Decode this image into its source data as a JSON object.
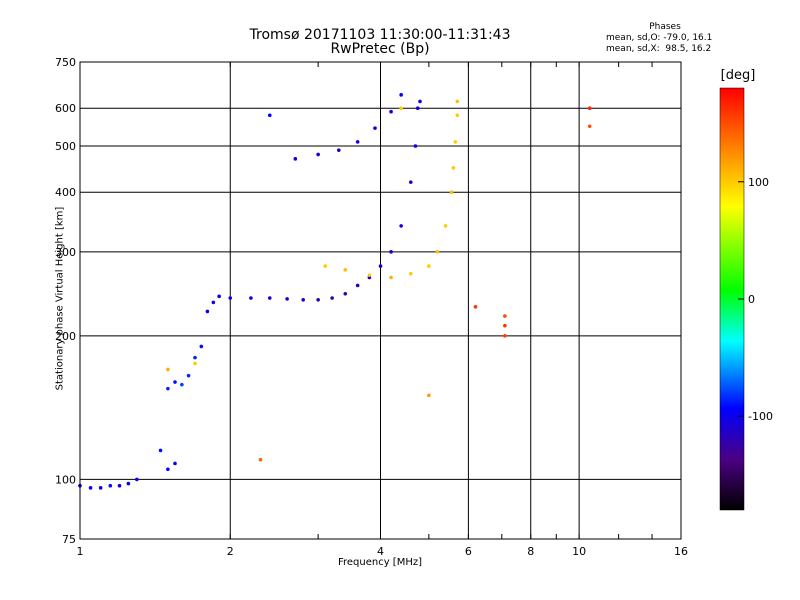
{
  "chart_data": {
    "type": "scatter",
    "title": "Tromsø 20171103 11:30:00-11:31:43",
    "subtitle": "RwPretec (Bp)",
    "xlabel": "Frequency [MHz]",
    "ylabel": "Stationary phase Virtual Height [km]",
    "x_scale": "log",
    "y_scale": "log",
    "xlim": [
      1,
      16
    ],
    "ylim": [
      75,
      750
    ],
    "x_ticks": [
      "1",
      "2",
      "4",
      "6",
      "8",
      "10",
      "16"
    ],
    "x_tick_values": [
      1,
      2,
      4,
      6,
      8,
      10,
      16
    ],
    "y_ticks": [
      "75",
      "100",
      "200",
      "300",
      "400",
      "500",
      "600",
      "750"
    ],
    "y_tick_values": [
      75,
      100,
      200,
      300,
      400,
      500,
      600,
      750
    ],
    "grid": true,
    "legend_title": "Phases",
    "legend_lines": [
      "mean, sd,O: -79.0, 16.1",
      "mean, sd,X:  98.5, 16.2"
    ],
    "colorbar": {
      "label": "[deg]",
      "range": [
        -180,
        180
      ],
      "ticks": [
        "100",
        "0",
        "-100"
      ],
      "tick_values": [
        100,
        0,
        -100
      ]
    },
    "series": [
      {
        "description_color": "blue-cyan",
        "points": [
          [
            1.0,
            97,
            -100
          ],
          [
            1.05,
            96,
            -95
          ],
          [
            1.1,
            96,
            -100
          ],
          [
            1.15,
            97,
            -90
          ],
          [
            1.2,
            97,
            -100
          ],
          [
            1.25,
            98,
            -95
          ],
          [
            1.3,
            100,
            -100
          ],
          [
            1.5,
            105,
            -95
          ],
          [
            1.55,
            108,
            -100
          ],
          [
            1.45,
            115,
            -90
          ],
          [
            1.5,
            155,
            -85
          ],
          [
            1.55,
            160,
            -90
          ],
          [
            1.6,
            158,
            -80
          ],
          [
            1.65,
            165,
            -85
          ],
          [
            1.7,
            180,
            -85
          ],
          [
            1.75,
            190,
            -90
          ],
          [
            1.8,
            225,
            -100
          ],
          [
            1.85,
            235,
            -100
          ],
          [
            1.9,
            242,
            -100
          ],
          [
            2.0,
            240,
            -100
          ],
          [
            2.2,
            240,
            -100
          ],
          [
            2.4,
            240,
            -110
          ],
          [
            2.6,
            239,
            -105
          ],
          [
            2.8,
            238,
            -110
          ],
          [
            3.0,
            238,
            -120
          ],
          [
            3.2,
            240,
            -120
          ],
          [
            3.4,
            245,
            -120
          ],
          [
            3.6,
            255,
            -115
          ],
          [
            3.8,
            265,
            -115
          ],
          [
            4.0,
            280,
            -110
          ],
          [
            4.2,
            300,
            -110
          ],
          [
            4.4,
            340,
            -105
          ],
          [
            4.6,
            420,
            -110
          ],
          [
            4.7,
            500,
            -105
          ],
          [
            4.75,
            600,
            -100
          ],
          [
            4.8,
            620,
            -105
          ],
          [
            2.7,
            470,
            -110
          ],
          [
            3.0,
            480,
            -110
          ],
          [
            3.3,
            490,
            -105
          ],
          [
            3.6,
            510,
            -105
          ],
          [
            3.9,
            545,
            -100
          ],
          [
            4.2,
            590,
            -95
          ],
          [
            4.4,
            640,
            -100
          ],
          [
            2.4,
            580,
            -95
          ]
        ]
      },
      {
        "description_color": "yellow",
        "points": [
          [
            3.1,
            280,
            100
          ],
          [
            3.4,
            275,
            105
          ],
          [
            3.8,
            268,
            100
          ],
          [
            4.2,
            265,
            110
          ],
          [
            4.6,
            270,
            100
          ],
          [
            5.0,
            280,
            100
          ],
          [
            5.2,
            300,
            105
          ],
          [
            5.4,
            340,
            100
          ],
          [
            5.55,
            400,
            105
          ],
          [
            5.6,
            450,
            100
          ],
          [
            5.65,
            510,
            100
          ],
          [
            5.7,
            580,
            100
          ],
          [
            5.7,
            620,
            105
          ],
          [
            4.4,
            600,
            100
          ],
          [
            1.5,
            170,
            110
          ],
          [
            1.7,
            175,
            100
          ],
          [
            5.0,
            150,
            120
          ]
        ]
      },
      {
        "description_color": "orange-red",
        "points": [
          [
            6.2,
            230,
            160
          ],
          [
            7.1,
            220,
            150
          ],
          [
            7.1,
            210,
            160
          ],
          [
            7.1,
            200,
            155
          ],
          [
            10.5,
            600,
            165
          ],
          [
            10.5,
            550,
            150
          ],
          [
            2.3,
            110,
            140
          ]
        ]
      }
    ]
  }
}
